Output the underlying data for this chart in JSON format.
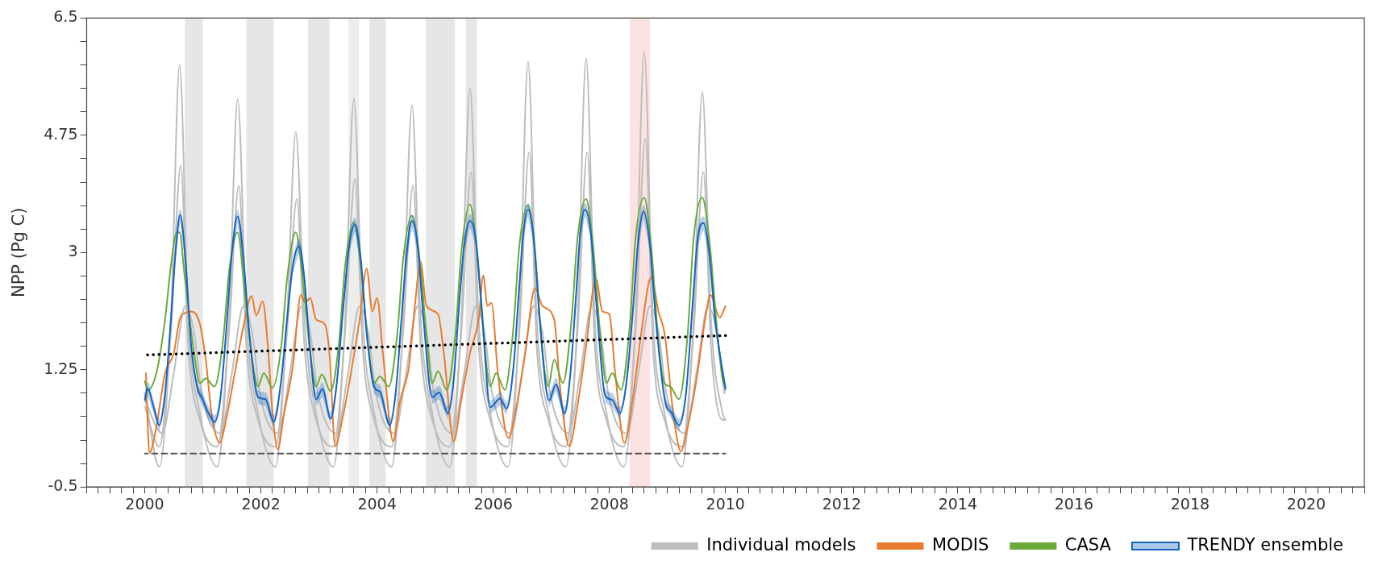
{
  "chart_data": {
    "type": "line",
    "ylabel": "NPP (Pg C)",
    "xlim": [
      1999,
      2021
    ],
    "ylim": [
      -0.5,
      6.5
    ],
    "yticks": [
      -0.5,
      {
        "value": -0.15,
        "label": null
      },
      {
        "value": 0.2,
        "label": null
      },
      {
        "value": 0.55,
        "label": null
      },
      {
        "value": 0.9,
        "label": null
      },
      1.25,
      {
        "value": 1.6,
        "label": null
      },
      {
        "value": 1.95,
        "label": null
      },
      {
        "value": 2.3,
        "label": null
      },
      {
        "value": 2.65,
        "label": null
      },
      3,
      {
        "value": 3.35,
        "label": null
      },
      {
        "value": 3.7,
        "label": null
      },
      {
        "value": 4.05,
        "label": null
      },
      {
        "value": 4.4,
        "label": null
      },
      4.75,
      {
        "value": 5.1,
        "label": null
      },
      {
        "value": 5.45,
        "label": null
      },
      {
        "value": 5.8,
        "label": null
      },
      {
        "value": 6.15,
        "label": null
      },
      6.5
    ],
    "xticks": [
      {
        "value": 1999,
        "label": null
      },
      {
        "value": 1999.2,
        "label": null
      },
      {
        "value": 1999.4,
        "label": null
      },
      {
        "value": 1999.6,
        "label": null
      },
      {
        "value": 1999.8,
        "label": null
      },
      2000,
      {
        "value": 2000.2,
        "label": null
      },
      {
        "value": 2000.4,
        "label": null
      },
      {
        "value": 2000.6,
        "label": null
      },
      {
        "value": 2000.8,
        "label": null
      },
      {
        "value": 2001,
        "label": null
      },
      {
        "value": 2001.2,
        "label": null
      },
      {
        "value": 2001.4,
        "label": null
      },
      {
        "value": 2001.6,
        "label": null
      },
      {
        "value": 2001.8,
        "label": null
      },
      2002,
      {
        "value": 2002.2,
        "label": null
      },
      {
        "value": 2002.4,
        "label": null
      },
      {
        "value": 2002.6,
        "label": null
      },
      {
        "value": 2002.8,
        "label": null
      },
      {
        "value": 2003,
        "label": null
      },
      {
        "value": 2003.2,
        "label": null
      },
      {
        "value": 2003.4,
        "label": null
      },
      {
        "value": 2003.6,
        "label": null
      },
      {
        "value": 2003.8,
        "label": null
      },
      2004,
      {
        "value": 2004.2,
        "label": null
      },
      {
        "value": 2004.4,
        "label": null
      },
      {
        "value": 2004.6,
        "label": null
      },
      {
        "value": 2004.8,
        "label": null
      },
      {
        "value": 2005,
        "label": null
      },
      {
        "value": 2005.2,
        "label": null
      },
      {
        "value": 2005.4,
        "label": null
      },
      {
        "value": 2005.6,
        "label": null
      },
      {
        "value": 2005.8,
        "label": null
      },
      2006,
      {
        "value": 2006.2,
        "label": null
      },
      {
        "value": 2006.4,
        "label": null
      },
      {
        "value": 2006.6,
        "label": null
      },
      {
        "value": 2006.8,
        "label": null
      },
      {
        "value": 2007,
        "label": null
      },
      {
        "value": 2007.2,
        "label": null
      },
      {
        "value": 2007.4,
        "label": null
      },
      {
        "value": 2007.6,
        "label": null
      },
      {
        "value": 2007.8,
        "label": null
      },
      2008,
      {
        "value": 2008.2,
        "label": null
      },
      {
        "value": 2008.4,
        "label": null
      },
      {
        "value": 2008.6,
        "label": null
      },
      {
        "value": 2008.8,
        "label": null
      },
      {
        "value": 2009,
        "label": null
      },
      {
        "value": 2009.2,
        "label": null
      },
      {
        "value": 2009.4,
        "label": null
      },
      {
        "value": 2009.6,
        "label": null
      },
      {
        "value": 2009.8,
        "label": null
      },
      2010,
      {
        "value": 2010.2,
        "label": null
      },
      {
        "value": 2010.4,
        "label": null
      },
      {
        "value": 2010.6,
        "label": null
      },
      {
        "value": 2010.8,
        "label": null
      },
      {
        "value": 2011,
        "label": null
      },
      {
        "value": 2011.2,
        "label": null
      },
      {
        "value": 2011.4,
        "label": null
      },
      {
        "value": 2011.6,
        "label": null
      },
      {
        "value": 2011.8,
        "label": null
      },
      2012,
      {
        "value": 2012.2,
        "label": null
      },
      {
        "value": 2012.4,
        "label": null
      },
      {
        "value": 2012.6,
        "label": null
      },
      {
        "value": 2012.8,
        "label": null
      },
      {
        "value": 2013,
        "label": null
      },
      {
        "value": 2013.2,
        "label": null
      },
      {
        "value": 2013.4,
        "label": null
      },
      {
        "value": 2013.6,
        "label": null
      },
      {
        "value": 2013.8,
        "label": null
      },
      2014,
      {
        "value": 2014.2,
        "label": null
      },
      {
        "value": 2014.4,
        "label": null
      },
      {
        "value": 2014.6,
        "label": null
      },
      {
        "value": 2014.8,
        "label": null
      },
      {
        "value": 2015,
        "label": null
      },
      {
        "value": 2015.2,
        "label": null
      },
      {
        "value": 2015.4,
        "label": null
      },
      {
        "value": 2015.6,
        "label": null
      },
      {
        "value": 2015.8,
        "label": null
      },
      2016,
      {
        "value": 2016.2,
        "label": null
      },
      {
        "value": 2016.4,
        "label": null
      },
      {
        "value": 2016.6,
        "label": null
      },
      {
        "value": 2016.8,
        "label": null
      },
      {
        "value": 2017,
        "label": null
      },
      {
        "value": 2017.2,
        "label": null
      },
      {
        "value": 2017.4,
        "label": null
      },
      {
        "value": 2017.6,
        "label": null
      },
      {
        "value": 2017.8,
        "label": null
      },
      2018,
      {
        "value": 2018.2,
        "label": null
      },
      {
        "value": 2018.4,
        "label": null
      },
      {
        "value": 2018.6,
        "label": null
      },
      {
        "value": 2018.8,
        "label": null
      },
      {
        "value": 2019,
        "label": null
      },
      {
        "value": 2019.2,
        "label": null
      },
      {
        "value": 2019.4,
        "label": null
      },
      {
        "value": 2019.6,
        "label": null
      },
      {
        "value": 2019.8,
        "label": null
      },
      2020,
      {
        "value": 2020.2,
        "label": null
      },
      {
        "value": 2020.4,
        "label": null
      },
      {
        "value": 2020.6,
        "label": null
      },
      {
        "value": 2020.8,
        "label": null
      },
      {
        "value": 2021,
        "label": null
      }
    ],
    "grid": false,
    "legend": "bottom right",
    "bands": [
      {
        "axis": "x",
        "from": 2000.69,
        "to": 2001.0,
        "color": "#e6e6e6"
      },
      {
        "axis": "x",
        "from": 2001.75,
        "to": 2002.22,
        "color": "#e6e6e6"
      },
      {
        "axis": "x",
        "from": 2002.81,
        "to": 2003.18,
        "color": "#e6e6e6"
      },
      {
        "axis": "x",
        "from": 2003.51,
        "to": 2003.69,
        "color": "#ededed"
      },
      {
        "axis": "x",
        "from": 2003.87,
        "to": 2004.15,
        "color": "#e6e6e6"
      },
      {
        "axis": "x",
        "from": 2004.84,
        "to": 2005.34,
        "color": "#e6e6e6"
      },
      {
        "axis": "x",
        "from": 2005.53,
        "to": 2005.72,
        "color": "#e6e6e6"
      },
      {
        "axis": "x",
        "from": 2008.35,
        "to": 2008.7,
        "color": "#fde2e2"
      }
    ],
    "series": [
      {
        "name": "Individual models",
        "color": "#bdbdbd",
        "x": [
          2000.0,
          2000.25,
          2000.45,
          2000.6,
          2000.75,
          2000.95,
          2001.25,
          2001.45,
          2001.6,
          2001.75,
          2001.95,
          2002.25,
          2002.45,
          2002.6,
          2002.75,
          2002.95,
          2003.25,
          2003.45,
          2003.6,
          2003.75,
          2003.95,
          2004.25,
          2004.45,
          2004.6,
          2004.75,
          2004.95,
          2005.25,
          2005.45,
          2005.6,
          2005.75,
          2005.95,
          2006.25,
          2006.45,
          2006.6,
          2006.75,
          2006.95,
          2007.25,
          2007.45,
          2007.6,
          2007.75,
          2007.95,
          2008.25,
          2008.45,
          2008.6,
          2008.75,
          2008.95,
          2009.25,
          2009.45,
          2009.6,
          2009.75,
          2009.95,
          2010.0
        ],
        "values": [
          0.9,
          -0.2,
          2.0,
          5.8,
          2.0,
          0.6,
          -0.2,
          2.0,
          5.3,
          2.0,
          0.6,
          -0.2,
          2.0,
          4.8,
          2.0,
          0.6,
          -0.2,
          2.0,
          5.3,
          2.0,
          0.6,
          -0.2,
          2.0,
          5.2,
          2.0,
          0.6,
          -0.2,
          2.0,
          5.45,
          2.0,
          0.6,
          -0.2,
          2.0,
          5.85,
          2.0,
          0.6,
          -0.2,
          2.0,
          5.9,
          2.0,
          0.6,
          -0.2,
          2.0,
          6.0,
          2.0,
          0.6,
          -0.2,
          2.0,
          5.4,
          2.0,
          0.6,
          0.5
        ]
      },
      {
        "color": "#bdbdbd",
        "x": [
          2000.0,
          2000.25,
          2000.45,
          2000.62,
          2000.75,
          2000.95,
          2001.25,
          2001.45,
          2001.62,
          2001.75,
          2001.95,
          2002.25,
          2002.45,
          2002.62,
          2002.75,
          2002.95,
          2003.25,
          2003.45,
          2003.62,
          2003.75,
          2003.95,
          2004.25,
          2004.45,
          2004.62,
          2004.75,
          2004.95,
          2005.25,
          2005.45,
          2005.62,
          2005.75,
          2005.95,
          2006.25,
          2006.45,
          2006.62,
          2006.75,
          2006.95,
          2007.25,
          2007.45,
          2007.62,
          2007.75,
          2007.95,
          2008.25,
          2008.45,
          2008.62,
          2008.75,
          2008.95,
          2009.25,
          2009.45,
          2009.62,
          2009.75,
          2009.95,
          2010.0
        ],
        "values": [
          0.7,
          0.1,
          1.8,
          4.3,
          1.6,
          0.5,
          0.1,
          1.8,
          4.0,
          1.6,
          0.5,
          0.1,
          1.8,
          3.8,
          1.6,
          0.5,
          0.1,
          1.8,
          4.1,
          1.6,
          0.5,
          0.1,
          1.8,
          4.0,
          1.6,
          0.5,
          0.1,
          1.8,
          4.2,
          1.6,
          0.5,
          0.1,
          1.8,
          4.5,
          1.6,
          0.5,
          0.1,
          1.8,
          4.5,
          1.6,
          0.5,
          0.1,
          1.8,
          4.7,
          1.6,
          0.5,
          0.1,
          1.8,
          4.2,
          1.6,
          0.5,
          0.5
        ]
      },
      {
        "color": "#bdbdbd",
        "x": [
          2000.0,
          2000.3,
          2000.5,
          2000.7,
          2000.85,
          2000.98,
          2001.3,
          2001.5,
          2001.7,
          2001.85,
          2001.98,
          2002.3,
          2002.5,
          2002.7,
          2002.85,
          2002.98,
          2003.3,
          2003.5,
          2003.7,
          2003.85,
          2003.98,
          2004.3,
          2004.5,
          2004.7,
          2004.85,
          2004.98,
          2005.3,
          2005.5,
          2005.7,
          2005.85,
          2005.98,
          2006.3,
          2006.5,
          2006.7,
          2006.85,
          2006.98,
          2007.3,
          2007.5,
          2007.7,
          2007.85,
          2007.98,
          2008.3,
          2008.5,
          2008.7,
          2008.85,
          2008.98,
          2009.3,
          2009.5,
          2009.7,
          2009.85,
          2009.98
        ],
        "values": [
          0.8,
          0.3,
          1.2,
          2.2,
          1.8,
          0.9,
          0.3,
          1.2,
          2.2,
          1.8,
          0.9,
          0.3,
          1.2,
          2.2,
          1.8,
          0.9,
          0.3,
          1.2,
          2.2,
          1.8,
          0.9,
          0.3,
          1.2,
          2.2,
          1.8,
          0.9,
          0.3,
          1.2,
          2.2,
          1.8,
          0.9,
          0.3,
          1.2,
          2.2,
          1.8,
          0.9,
          0.3,
          1.2,
          2.2,
          1.8,
          0.9,
          0.3,
          1.2,
          2.2,
          1.8,
          0.9,
          0.3,
          1.2,
          2.2,
          1.8,
          0.9
        ]
      },
      {
        "name": "MODIS",
        "color": "#e87b2e",
        "x": [
          2000.02,
          2000.08,
          2000.2,
          2000.35,
          2000.5,
          2000.6,
          2000.7,
          2000.8,
          2000.95,
          2001.05,
          2001.15,
          2001.29,
          2001.4,
          2001.55,
          2001.7,
          2001.84,
          2001.92,
          2002.03,
          2002.12,
          2002.2,
          2002.29,
          2002.4,
          2002.55,
          2002.69,
          2002.76,
          2002.85,
          2002.95,
          2003.1,
          2003.18,
          2003.28,
          2003.4,
          2003.55,
          2003.7,
          2003.82,
          2003.92,
          2004.0,
          2004.1,
          2004.28,
          2004.4,
          2004.55,
          2004.65,
          2004.75,
          2004.85,
          2005.05,
          2005.15,
          2005.32,
          2005.45,
          2005.6,
          2005.75,
          2005.83,
          2005.9,
          2005.97,
          2006.08,
          2006.26,
          2006.4,
          2006.55,
          2006.72,
          2006.85,
          2007.05,
          2007.15,
          2007.31,
          2007.45,
          2007.6,
          2007.77,
          2007.88,
          2008.0,
          2008.1,
          2008.26,
          2008.4,
          2008.55,
          2008.72,
          2008.85,
          2008.95,
          2009.1,
          2009.23,
          2009.35,
          2009.5,
          2009.65,
          2009.74,
          2009.9,
          2010.0
        ],
        "values": [
          1.2,
          0.01,
          0.4,
          1.2,
          1.5,
          2.0,
          2.1,
          2.12,
          1.93,
          1.4,
          0.6,
          0.16,
          0.5,
          1.2,
          1.9,
          2.35,
          2.06,
          2.27,
          1.6,
          0.6,
          0.06,
          0.6,
          1.3,
          2.37,
          2.25,
          2.32,
          2.0,
          1.93,
          1.5,
          0.11,
          0.5,
          1.2,
          2.0,
          2.76,
          2.12,
          2.32,
          1.5,
          0.18,
          0.8,
          1.3,
          2.2,
          2.86,
          2.2,
          2.08,
          1.5,
          0.18,
          0.8,
          1.5,
          2.0,
          2.66,
          2.2,
          2.25,
          1.2,
          0.23,
          0.7,
          1.5,
          2.47,
          2.2,
          2.0,
          1.0,
          0.11,
          0.7,
          1.6,
          2.61,
          2.12,
          2.08,
          1.2,
          0.16,
          0.8,
          1.8,
          2.63,
          2.1,
          1.8,
          0.6,
          0.03,
          0.4,
          1.1,
          2.0,
          2.37,
          2.03,
          2.2
        ]
      },
      {
        "name": "CASA",
        "color": "#6aaa3a",
        "x": [
          2000.0,
          2000.05,
          2000.2,
          2000.35,
          2000.45,
          2000.55,
          2000.6,
          2000.68,
          2000.85,
          2000.95,
          2001.05,
          2001.2,
          2001.35,
          2001.45,
          2001.6,
          2001.72,
          2001.85,
          2001.95,
          2002.05,
          2002.2,
          2002.35,
          2002.45,
          2002.6,
          2002.72,
          2002.85,
          2002.95,
          2003.05,
          2003.2,
          2003.35,
          2003.45,
          2003.6,
          2003.72,
          2003.85,
          2003.95,
          2004.05,
          2004.2,
          2004.35,
          2004.45,
          2004.6,
          2004.72,
          2004.85,
          2004.95,
          2005.05,
          2005.2,
          2005.35,
          2005.45,
          2005.6,
          2005.72,
          2005.85,
          2005.95,
          2006.05,
          2006.2,
          2006.35,
          2006.45,
          2006.6,
          2006.72,
          2006.85,
          2006.95,
          2007.05,
          2007.2,
          2007.35,
          2007.45,
          2007.6,
          2007.72,
          2007.85,
          2007.95,
          2008.05,
          2008.2,
          2008.35,
          2008.45,
          2008.6,
          2008.72,
          2008.85,
          2008.95,
          2009.05,
          2009.2,
          2009.35,
          2009.45,
          2009.6,
          2009.72,
          2009.85,
          2009.95,
          2010.0
        ],
        "values": [
          1.08,
          0.95,
          1.2,
          2.0,
          2.8,
          3.3,
          3.3,
          2.7,
          1.5,
          1.05,
          1.12,
          1.0,
          1.7,
          2.7,
          3.3,
          2.4,
          1.4,
          1.0,
          1.2,
          0.98,
          1.6,
          2.6,
          3.3,
          2.6,
          1.5,
          1.0,
          1.18,
          0.93,
          1.7,
          2.8,
          3.45,
          2.8,
          1.6,
          1.05,
          1.15,
          1.0,
          1.8,
          2.9,
          3.55,
          3.0,
          1.8,
          1.05,
          1.23,
          0.95,
          1.8,
          3.0,
          3.72,
          3.0,
          1.6,
          1.0,
          1.2,
          0.95,
          1.9,
          3.1,
          3.7,
          3.0,
          1.5,
          1.0,
          1.4,
          1.05,
          2.0,
          3.2,
          3.8,
          3.1,
          1.7,
          1.05,
          1.2,
          0.95,
          1.9,
          3.2,
          3.82,
          3.1,
          1.6,
          1.05,
          1.0,
          0.81,
          1.8,
          3.2,
          3.82,
          3.2,
          1.9,
          1.1,
          1.0
        ]
      },
      {
        "name": "TRENDY ensemble",
        "color": "#1565c0",
        "x": [
          2000.0,
          2000.05,
          2000.15,
          2000.25,
          2000.35,
          2000.45,
          2000.53,
          2000.61,
          2000.7,
          2000.8,
          2000.9,
          2001.0,
          2001.1,
          2001.2,
          2001.3,
          2001.4,
          2001.5,
          2001.6,
          2001.7,
          2001.8,
          2001.95,
          2002.08,
          2002.22,
          2002.35,
          2002.45,
          2002.55,
          2002.66,
          2002.75,
          2002.85,
          2002.95,
          2003.06,
          2003.2,
          2003.3,
          2003.42,
          2003.52,
          2003.62,
          2003.72,
          2003.82,
          2003.95,
          2004.05,
          2004.22,
          2004.32,
          2004.42,
          2004.5,
          2004.6,
          2004.7,
          2004.8,
          2004.95,
          2005.07,
          2005.22,
          2005.32,
          2005.42,
          2005.5,
          2005.6,
          2005.7,
          2005.8,
          2005.95,
          2006.12,
          2006.23,
          2006.35,
          2006.45,
          2006.52,
          2006.6,
          2006.7,
          2006.8,
          2006.96,
          2007.08,
          2007.23,
          2007.33,
          2007.43,
          2007.5,
          2007.58,
          2007.68,
          2007.78,
          2007.93,
          2008.05,
          2008.18,
          2008.3,
          2008.42,
          2008.5,
          2008.59,
          2008.7,
          2008.8,
          2008.96,
          2009.08,
          2009.2,
          2009.32,
          2009.44,
          2009.52,
          2009.62,
          2009.72,
          2009.82,
          2010.0
        ],
        "values": [
          0.8,
          0.97,
          0.7,
          0.42,
          0.9,
          2.0,
          3.0,
          3.56,
          2.9,
          1.6,
          1.0,
          0.8,
          0.6,
          0.47,
          0.8,
          1.8,
          3.0,
          3.54,
          2.9,
          1.8,
          0.84,
          0.81,
          0.47,
          1.1,
          2.0,
          2.8,
          3.1,
          2.6,
          1.5,
          0.81,
          0.96,
          0.52,
          1.0,
          2.2,
          3.1,
          3.42,
          2.9,
          1.8,
          0.99,
          0.92,
          0.42,
          0.9,
          2.0,
          2.9,
          3.47,
          3.1,
          2.0,
          0.84,
          0.91,
          0.6,
          1.1,
          2.3,
          3.1,
          3.47,
          3.2,
          2.2,
          0.69,
          0.82,
          0.67,
          1.3,
          2.5,
          3.3,
          3.64,
          3.2,
          2.0,
          0.79,
          1.03,
          0.6,
          1.2,
          2.4,
          3.3,
          3.64,
          3.3,
          2.2,
          0.86,
          0.8,
          0.6,
          1.1,
          2.3,
          3.2,
          3.61,
          3.1,
          2.0,
          0.78,
          0.6,
          0.42,
          0.9,
          2.3,
          3.2,
          3.44,
          3.0,
          2.0,
          0.96
        ],
        "lower": [
          0.7,
          0.87,
          0.6,
          0.32,
          0.8,
          1.9,
          2.9,
          3.46,
          2.8,
          1.5,
          0.9,
          0.7,
          0.5,
          0.37,
          0.7,
          1.7,
          2.9,
          3.44,
          2.8,
          1.7,
          0.74,
          0.71,
          0.37,
          1.0,
          1.9,
          2.7,
          3.0,
          2.5,
          1.4,
          0.71,
          0.86,
          0.42,
          0.9,
          2.1,
          3.0,
          3.32,
          2.8,
          1.7,
          0.89,
          0.82,
          0.32,
          0.8,
          1.9,
          2.8,
          3.37,
          3.0,
          1.9,
          0.74,
          0.81,
          0.5,
          1.0,
          2.2,
          3.0,
          3.37,
          3.1,
          2.1,
          0.59,
          0.72,
          0.57,
          1.2,
          2.4,
          3.2,
          3.54,
          3.1,
          1.9,
          0.69,
          0.93,
          0.5,
          1.1,
          2.3,
          3.2,
          3.54,
          3.2,
          2.1,
          0.76,
          0.7,
          0.5,
          1.0,
          2.2,
          3.1,
          3.51,
          3.0,
          1.9,
          0.68,
          0.5,
          0.32,
          0.8,
          2.2,
          3.1,
          3.34,
          2.9,
          1.9,
          0.86
        ],
        "upper": [
          0.9,
          1.07,
          0.8,
          0.52,
          1.0,
          2.1,
          3.1,
          3.66,
          3.0,
          1.7,
          1.1,
          0.9,
          0.7,
          0.57,
          0.9,
          1.9,
          3.1,
          3.64,
          3.0,
          1.9,
          0.94,
          0.91,
          0.57,
          1.2,
          2.1,
          2.9,
          3.2,
          2.7,
          1.6,
          0.91,
          1.06,
          0.62,
          1.1,
          2.3,
          3.2,
          3.52,
          3.0,
          1.9,
          1.09,
          1.02,
          0.52,
          1.0,
          2.1,
          3.0,
          3.57,
          3.2,
          2.1,
          0.94,
          1.01,
          0.7,
          1.2,
          2.4,
          3.2,
          3.57,
          3.3,
          2.3,
          0.79,
          0.92,
          0.77,
          1.4,
          2.6,
          3.4,
          3.74,
          3.3,
          2.1,
          0.89,
          1.13,
          0.7,
          1.3,
          2.5,
          3.4,
          3.74,
          3.4,
          2.3,
          0.96,
          0.9,
          0.7,
          1.2,
          2.4,
          3.3,
          3.71,
          3.2,
          2.1,
          0.88,
          0.7,
          0.52,
          1.0,
          2.4,
          3.3,
          3.54,
          3.1,
          2.1,
          1.06
        ]
      },
      {
        "color": "#000000",
        "line_style": "dotted",
        "x": [
          2000,
          2010
        ],
        "values": [
          1.47,
          1.76
        ]
      },
      {
        "color": "#555555",
        "line_style": "dashed",
        "x": [
          2000,
          2010
        ],
        "values": [
          0,
          0
        ]
      }
    ]
  }
}
